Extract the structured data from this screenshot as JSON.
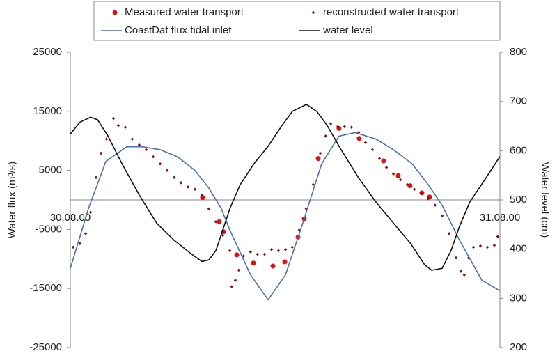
{
  "chart_data": {
    "type": "line",
    "ylabel": "Water flux (m³/s)",
    "y2label": "Water level (cm)",
    "xlim": [
      0,
      24
    ],
    "xticks": [
      {
        "value": 0,
        "label": "30.08.00"
      },
      {
        "value": 24,
        "label": "31.08.00"
      }
    ],
    "ylim": [
      -25000,
      25000
    ],
    "yticks": [
      -25000,
      -15000,
      -5000,
      5000,
      15000,
      25000
    ],
    "y2lim": [
      200,
      800
    ],
    "y2ticks": [
      200,
      300,
      400,
      500,
      600,
      700,
      800
    ],
    "grid": false,
    "legend": "top",
    "series": [
      {
        "name": "Measured water transport",
        "color": "#e01010",
        "marker": "dot",
        "x": [
          7.39,
          8.32,
          8.56,
          9.3,
          10.23,
          11.32,
          11.98,
          12.72,
          13.07,
          13.85,
          15.01,
          16.14,
          17.5,
          18.32,
          18.98,
          19.64,
          20.07
        ],
        "values": [
          400,
          -3700,
          -5400,
          -9300,
          -10700,
          -11200,
          -10500,
          -6300,
          -3200,
          7000,
          12100,
          10400,
          6600,
          4100,
          2400,
          1200,
          500
        ]
      },
      {
        "name": "reconstructed water transport",
        "color": "#8b1010",
        "marker": "diamond",
        "x": [
          0.16,
          0.54,
          0.86,
          1.13,
          1.44,
          1.71,
          2.02,
          2.41,
          2.68,
          3.07,
          3.46,
          3.85,
          4.24,
          4.63,
          5.02,
          5.41,
          5.8,
          6.18,
          6.57,
          6.96,
          7.35,
          7.74,
          8.13,
          8.52,
          8.91,
          9.02,
          9.22,
          9.41,
          9.68,
          10.07,
          10.46,
          10.85,
          11.24,
          11.63,
          12.02,
          12.4,
          12.79,
          13.18,
          13.57,
          13.96,
          14.27,
          14.55,
          14.94,
          15.32,
          15.71,
          16.1,
          16.49,
          16.88,
          17.27,
          17.66,
          18.05,
          18.44,
          18.83,
          19.22,
          19.6,
          19.99,
          20.38,
          20.77,
          21.16,
          21.55,
          21.82,
          22.01,
          22.25,
          22.52,
          22.91,
          23.3,
          23.69,
          23.88
        ],
        "values": [
          -8000,
          -7400,
          -5700,
          -2100,
          3800,
          7900,
          10300,
          13800,
          12600,
          12300,
          10300,
          9300,
          8500,
          7300,
          6100,
          5000,
          3800,
          2900,
          2200,
          1800,
          800,
          -1500,
          -3700,
          -6000,
          -8600,
          -14700,
          -13600,
          -11900,
          -9500,
          -8800,
          -9200,
          -9200,
          -8400,
          -8600,
          -8400,
          -8000,
          -5100,
          -1500,
          2600,
          7900,
          10800,
          12900,
          12400,
          12400,
          12300,
          11400,
          9700,
          8500,
          7000,
          5500,
          4400,
          3400,
          2600,
          1800,
          1100,
          200,
          -900,
          -2700,
          -5700,
          -9800,
          -12100,
          -12700,
          -9800,
          -8000,
          -7800,
          -8000,
          -7700,
          -6200
        ]
      },
      {
        "name": "CoastDat flux tidal inlet",
        "color": "#4a6fb5",
        "marker": "line",
        "x": [
          0,
          1.01,
          1.98,
          3.15,
          4.05,
          5.02,
          5.99,
          6.96,
          7.74,
          8.44,
          8.91,
          10.07,
          11.05,
          12.02,
          12.99,
          14.04,
          15.01,
          15.91,
          17.07,
          18.05,
          19.1,
          19.99,
          20.77,
          21.74,
          22.99,
          24.0
        ],
        "values": [
          -11600,
          -1500,
          6500,
          9000,
          9000,
          8500,
          7300,
          5000,
          2000,
          -1500,
          -5100,
          -12700,
          -16900,
          -12700,
          -3900,
          6100,
          10800,
          11400,
          10300,
          8500,
          6100,
          2600,
          -900,
          -6800,
          -13600,
          -15400
        ]
      },
      {
        "name": "water level",
        "color": "#111111",
        "marker": "line",
        "axis": "y2",
        "x": [
          0,
          0.54,
          1.13,
          1.52,
          2.1,
          2.88,
          3.85,
          4.82,
          5.8,
          6.77,
          7.35,
          7.74,
          8.13,
          8.52,
          8.91,
          9.49,
          10.27,
          11.05,
          11.82,
          12.41,
          13.19,
          13.77,
          14.35,
          15.13,
          16.1,
          17.07,
          18.05,
          19.02,
          19.8,
          20.19,
          20.77,
          21.27,
          21.74,
          22.32,
          23.1,
          24.0
        ],
        "values": [
          634,
          658,
          668,
          663,
          630,
          574,
          510,
          453,
          418,
          390,
          375,
          378,
          397,
          439,
          482,
          531,
          574,
          609,
          651,
          680,
          694,
          680,
          651,
          602,
          545,
          496,
          453,
          411,
          368,
          357,
          361,
          397,
          446,
          496,
          538,
          588
        ]
      }
    ]
  }
}
